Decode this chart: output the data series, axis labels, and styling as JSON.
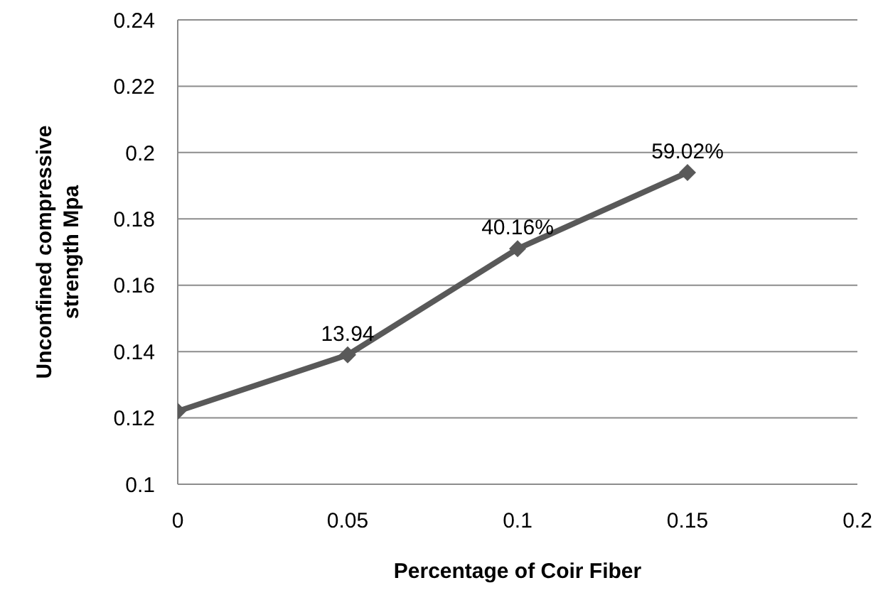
{
  "chart_data": {
    "type": "line",
    "xlabel": "Percentage of  Coir Fiber",
    "ylabel": "Unconfined compressive strength Mpa",
    "x": [
      0,
      0.05,
      0.1,
      0.15
    ],
    "series": [
      {
        "color": "#595959",
        "values": [
          0.122,
          0.139,
          0.171,
          0.194
        ]
      }
    ],
    "annotations": [
      {
        "text": "13.94",
        "x": 0.05,
        "y": 0.139
      },
      {
        "text": "40.16%",
        "x": 0.1,
        "y": 0.171
      },
      {
        "text": "59.02%",
        "x": 0.15,
        "y": 0.194
      }
    ],
    "xlim": [
      0,
      0.2
    ],
    "xticks": [
      0,
      0.05,
      0.1,
      0.15,
      0.2
    ],
    "ylim": [
      0.1,
      0.24
    ],
    "yticks": [
      0.1,
      0.12,
      0.14,
      0.16,
      0.18,
      0.2,
      0.22,
      0.24
    ],
    "grid": "y",
    "marker": "diamond",
    "line_style": "solid"
  }
}
